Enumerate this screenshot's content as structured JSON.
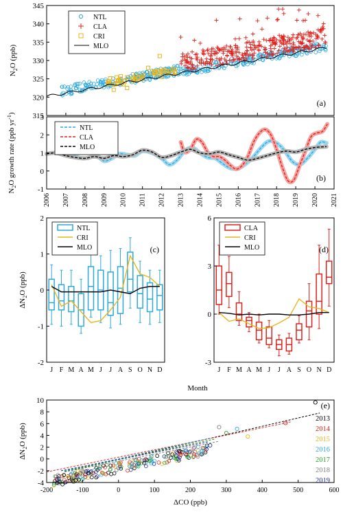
{
  "figure": {
    "colors": {
      "NTL": "#29a9df",
      "CLA": "#e0201b",
      "CRI": "#e8b51c",
      "MLO": "#000000",
      "grey_band": "#b5b5b5",
      "y2013": "#000000",
      "y2014": "#e0201b",
      "y2015": "#e8b51c",
      "y2016": "#29a9df",
      "y2017": "#2aa32a",
      "y2018": "#808080",
      "y2019": "#1f2a9e"
    }
  },
  "chart_data": [
    {
      "id": "a",
      "panel_label": "(a)",
      "type": "scatter",
      "ylabel_main": "N",
      "ylabel_sub": "2",
      "ylabel_rest": "O (ppb)",
      "ylim": [
        315,
        345
      ],
      "yticks": [
        "315",
        "320",
        "325",
        "330",
        "335",
        "340",
        "345"
      ],
      "xlim": [
        2006,
        2021
      ],
      "legend": [
        "NTL",
        "CLA",
        "CRI",
        "MLO"
      ],
      "legend_position": "top-left",
      "series": [
        {
          "name": "MLO",
          "kind": "line",
          "x_start": 2006.0,
          "x_end": 2020.6,
          "y_start": 320.2,
          "y_end": 333.5
        },
        {
          "name": "NTL",
          "kind": "circle",
          "x_range": [
            2006.8,
            2012.9
          ],
          "y_range": [
            321.0,
            328.5
          ],
          "x_range2": [
            2012.9,
            2020.6
          ],
          "y_range2": [
            325.0,
            335.5
          ]
        },
        {
          "name": "CRI",
          "kind": "square",
          "points": [
            [
              2009.5,
              322.0
            ],
            [
              2010.0,
              323.5
            ],
            [
              2010.5,
              324.5
            ],
            [
              2011.0,
              325.0
            ],
            [
              2011.3,
              328.0
            ],
            [
              2011.6,
              327.0
            ],
            [
              2012.0,
              325.5
            ],
            [
              2012.3,
              326.5
            ],
            [
              2012.7,
              327.0
            ],
            [
              2010.8,
              325.5
            ],
            [
              2011.9,
              331.2
            ],
            [
              2010.2,
              322.5
            ]
          ]
        },
        {
          "name": "CLA",
          "kind": "plus",
          "x_range": [
            2013.0,
            2020.6
          ],
          "y_range": [
            326.0,
            345.0
          ]
        }
      ]
    },
    {
      "id": "b",
      "panel_label": "(b)",
      "type": "line",
      "ylabel_main": "N",
      "ylabel_sub": "2",
      "ylabel_rest": "O growth rate (ppb yr",
      "ylabel_sup": "-1",
      "ylabel_close": ")",
      "ylim": [
        -1,
        3
      ],
      "yticks": [
        "-1",
        "0",
        "1",
        "2",
        "3"
      ],
      "xlim": [
        2006,
        2021
      ],
      "xticks": [
        "2006",
        "2007",
        "2008",
        "2009",
        "2010",
        "2011",
        "2012",
        "2013",
        "2014",
        "2015",
        "2016",
        "2017",
        "2018",
        "2019",
        "2020",
        "2021"
      ],
      "legend": [
        "NTL",
        "CLA",
        "MLO"
      ],
      "legend_position": "top-left",
      "series": [
        {
          "name": "NTL",
          "x": [
            2006.8,
            2007.3,
            2007.8,
            2008.2,
            2008.6,
            2009.0,
            2009.4,
            2009.8,
            2010.2,
            2010.6,
            2011.0,
            2011.5,
            2012.0,
            2012.4,
            2012.8,
            2013.2,
            2013.6,
            2014.0,
            2014.4,
            2014.8,
            2015.2,
            2015.6,
            2016.0,
            2016.4,
            2016.8,
            2017.2,
            2017.6,
            2018.0,
            2018.4,
            2018.8,
            2019.2,
            2019.6,
            2020.0,
            2020.3,
            2020.6
          ],
          "y": [
            0.95,
            0.85,
            1.05,
            1.2,
            0.9,
            0.55,
            0.7,
            0.95,
            0.9,
            0.85,
            1.1,
            1.0,
            0.7,
            0.35,
            0.6,
            1.1,
            1.3,
            1.0,
            0.75,
            0.7,
            0.4,
            0.15,
            0.15,
            0.4,
            0.8,
            1.3,
            1.65,
            1.55,
            1.15,
            0.55,
            0.35,
            0.7,
            1.2,
            1.6,
            1.55
          ]
        },
        {
          "name": "CLA",
          "x": [
            2013.0,
            2013.2,
            2013.5,
            2013.8,
            2014.1,
            2014.4,
            2014.7,
            2015.0,
            2015.3,
            2015.6,
            2015.9,
            2016.2,
            2016.5,
            2016.8,
            2017.1,
            2017.4,
            2017.7,
            2018.0,
            2018.3,
            2018.6,
            2018.9,
            2019.2,
            2019.5,
            2019.8,
            2020.1,
            2020.4,
            2020.65
          ],
          "y": [
            1.6,
            1.05,
            1.2,
            1.75,
            1.6,
            1.05,
            0.8,
            0.8,
            0.6,
            0.3,
            0.1,
            0.3,
            0.8,
            1.6,
            2.1,
            2.3,
            2.0,
            1.2,
            0.2,
            -0.55,
            -0.5,
            0.3,
            1.1,
            1.9,
            2.1,
            2.2,
            2.6
          ]
        },
        {
          "name": "MLO",
          "x": [
            2006.0,
            2006.5,
            2007.0,
            2007.5,
            2008.0,
            2008.5,
            2009.0,
            2009.5,
            2010.0,
            2010.5,
            2011.0,
            2011.5,
            2012.0,
            2012.5,
            2013.0,
            2013.5,
            2014.0,
            2014.5,
            2015.0,
            2015.5,
            2016.0,
            2016.5,
            2017.0,
            2017.5,
            2018.0,
            2018.5,
            2019.0,
            2019.5,
            2020.0,
            2020.6
          ],
          "y": [
            0.95,
            1.0,
            0.85,
            0.75,
            0.7,
            0.8,
            0.7,
            0.85,
            0.8,
            0.9,
            1.15,
            1.05,
            0.75,
            0.85,
            1.05,
            1.2,
            1.0,
            0.95,
            1.05,
            0.9,
            0.75,
            0.6,
            0.7,
            0.85,
            1.0,
            1.1,
            1.05,
            1.2,
            1.3,
            1.35
          ]
        }
      ]
    },
    {
      "id": "c",
      "panel_label": "(c)",
      "type": "box",
      "ylabel_main": "ΔN",
      "ylabel_sub": "2",
      "ylabel_rest": "O (ppb)",
      "ylim": [
        -2,
        2
      ],
      "yticks": [
        "-2",
        "-1",
        "0",
        "1",
        "2"
      ],
      "categories": [
        "J",
        "F",
        "M",
        "A",
        "M",
        "J",
        "J",
        "A",
        "S",
        "O",
        "N",
        "D"
      ],
      "legend": [
        "NTL",
        "CRI",
        "MLO"
      ],
      "legend_position": "top-left",
      "boxes_NTL": [
        {
          "min": -0.95,
          "q1": -0.55,
          "median": -0.35,
          "q3": 0.3,
          "max": 0.7
        },
        {
          "min": -1.0,
          "q1": -0.55,
          "median": -0.3,
          "q3": 0.15,
          "max": 0.55
        },
        {
          "min": -0.95,
          "q1": -0.6,
          "median": -0.3,
          "q3": 0.1,
          "max": 0.55
        },
        {
          "min": -1.2,
          "q1": -1.0,
          "median": -0.55,
          "q3": -0.1,
          "max": 0.3
        },
        {
          "min": -0.75,
          "q1": -0.55,
          "median": 0.1,
          "q3": 0.65,
          "max": 1.05
        },
        {
          "min": -0.9,
          "q1": -0.55,
          "median": 0.0,
          "q3": 0.55,
          "max": 0.95
        },
        {
          "min": -1.05,
          "q1": -0.7,
          "median": -0.35,
          "q3": 0.5,
          "max": 1.1
        },
        {
          "min": -0.95,
          "q1": -0.65,
          "median": 0.05,
          "q3": 0.65,
          "max": 1.15
        },
        {
          "min": -0.5,
          "q1": -0.05,
          "median": 0.3,
          "q3": 1.05,
          "max": 1.45
        },
        {
          "min": -0.9,
          "q1": -0.5,
          "median": -0.1,
          "q3": 0.4,
          "max": 0.8
        },
        {
          "min": -0.95,
          "q1": -0.6,
          "median": -0.25,
          "q3": 0.2,
          "max": 0.55
        },
        {
          "min": -0.9,
          "q1": -0.55,
          "median": -0.15,
          "q3": 0.15,
          "max": 0.55
        }
      ],
      "series": [
        {
          "name": "CRI",
          "values": [
            0.15,
            -0.45,
            -0.3,
            -0.6,
            -0.9,
            -0.85,
            -0.55,
            -0.2,
            0.95,
            0.45,
            0.35,
            0.1
          ]
        },
        {
          "name": "MLO",
          "values": [
            0.1,
            -0.05,
            -0.05,
            -0.05,
            -0.05,
            -0.05,
            0.0,
            -0.05,
            -0.1,
            0.05,
            0.1,
            0.1
          ]
        }
      ],
      "xlabel": "Month"
    },
    {
      "id": "d",
      "panel_label": "(d)",
      "type": "box",
      "ylim": [
        -3,
        6
      ],
      "yticks": [
        "-3",
        "0",
        "3",
        "6"
      ],
      "categories": [
        "J",
        "F",
        "M",
        "A",
        "M",
        "J",
        "J",
        "A",
        "S",
        "O",
        "N",
        "D"
      ],
      "legend": [
        "CLA",
        "CRI",
        "MLO"
      ],
      "legend_position": "top-left",
      "boxes_CLA": [
        {
          "min": 0.0,
          "q1": 0.6,
          "median": 1.5,
          "q3": 3.0,
          "max": 4.3
        },
        {
          "min": 0.4,
          "q1": 1.1,
          "median": 1.9,
          "q3": 2.6,
          "max": 3.6
        },
        {
          "min": -0.7,
          "q1": -0.4,
          "median": 0.0,
          "q3": 0.7,
          "max": 1.4
        },
        {
          "min": -1.1,
          "q1": -0.8,
          "median": -0.4,
          "q3": -0.2,
          "max": 0.1
        },
        {
          "min": -1.8,
          "q1": -1.6,
          "median": -1.0,
          "q3": -0.5,
          "max": 0.0
        },
        {
          "min": -2.1,
          "q1": -1.9,
          "median": -1.5,
          "q3": -0.8,
          "max": -0.4
        },
        {
          "min": -2.6,
          "q1": -2.2,
          "median": -1.9,
          "q3": -1.6,
          "max": -1.3
        },
        {
          "min": -2.5,
          "q1": -2.3,
          "median": -1.9,
          "q3": -1.5,
          "max": -1.2
        },
        {
          "min": -1.8,
          "q1": -1.6,
          "median": -1.0,
          "q3": -0.6,
          "max": -0.1
        },
        {
          "min": -1.6,
          "q1": -0.8,
          "median": 0.2,
          "q3": 0.8,
          "max": 1.9
        },
        {
          "min": -0.9,
          "q1": 0.0,
          "median": 0.8,
          "q3": 2.5,
          "max": 4.3
        },
        {
          "min": 0.5,
          "q1": 1.9,
          "median": 2.3,
          "q3": 3.3,
          "max": 5.3
        }
      ],
      "series": [
        {
          "name": "CRI",
          "values": [
            0.1,
            -0.45,
            -0.3,
            -0.6,
            -0.9,
            -0.85,
            -0.55,
            -0.2,
            0.95,
            0.45,
            0.35,
            0.1
          ]
        },
        {
          "name": "MLO",
          "values": [
            0.1,
            0.05,
            -0.05,
            0.0,
            -0.05,
            0.0,
            0.0,
            -0.05,
            -0.05,
            0.0,
            0.1,
            0.1
          ]
        }
      ]
    },
    {
      "id": "e",
      "panel_label": "(e)",
      "type": "scatter",
      "xlabel": "ΔCO (ppb)",
      "ylabel_main": "ΔN",
      "ylabel_sub": "2",
      "ylabel_rest": "O (ppb)",
      "xlim": [
        -200,
        600
      ],
      "ylim": [
        -4,
        10
      ],
      "xticks": [
        "-200",
        "-100",
        "0",
        "100",
        "200",
        "300",
        "400",
        "500",
        "600"
      ],
      "yticks": [
        "-4",
        "-2",
        "0",
        "2",
        "4",
        "6",
        "8",
        "10"
      ],
      "legend": [
        "2013",
        "2014",
        "2015",
        "2016",
        "2017",
        "2018",
        "2019"
      ],
      "legend_position": "right",
      "fit_lines": [
        {
          "name": "2013",
          "x": [
            -150,
            560
          ],
          "y": [
            -2.2,
            7.8
          ]
        },
        {
          "name": "2014",
          "x": [
            -200,
            480
          ],
          "y": [
            -2.2,
            6.3
          ]
        },
        {
          "name": "2015",
          "x": [
            -150,
            270
          ],
          "y": [
            -2.0,
            3.4
          ]
        },
        {
          "name": "2016",
          "x": [
            -150,
            260
          ],
          "y": [
            -2.0,
            3.6
          ]
        },
        {
          "name": "2017",
          "x": [
            -150,
            270
          ],
          "y": [
            -2.1,
            3.4
          ]
        },
        {
          "name": "2018",
          "x": [
            -150,
            280
          ],
          "y": [
            -2.2,
            3.0
          ]
        },
        {
          "name": "2019",
          "x": [
            -160,
            250
          ],
          "y": [
            -2.0,
            2.9
          ]
        }
      ],
      "outliers": [
        [
          548,
          9.6
        ],
        [
          465,
          6.1
        ],
        [
          360,
          3.8
        ],
        [
          330,
          5.1
        ],
        [
          300,
          4.4
        ],
        [
          280,
          5.4
        ],
        [
          255,
          2.3
        ]
      ]
    }
  ]
}
